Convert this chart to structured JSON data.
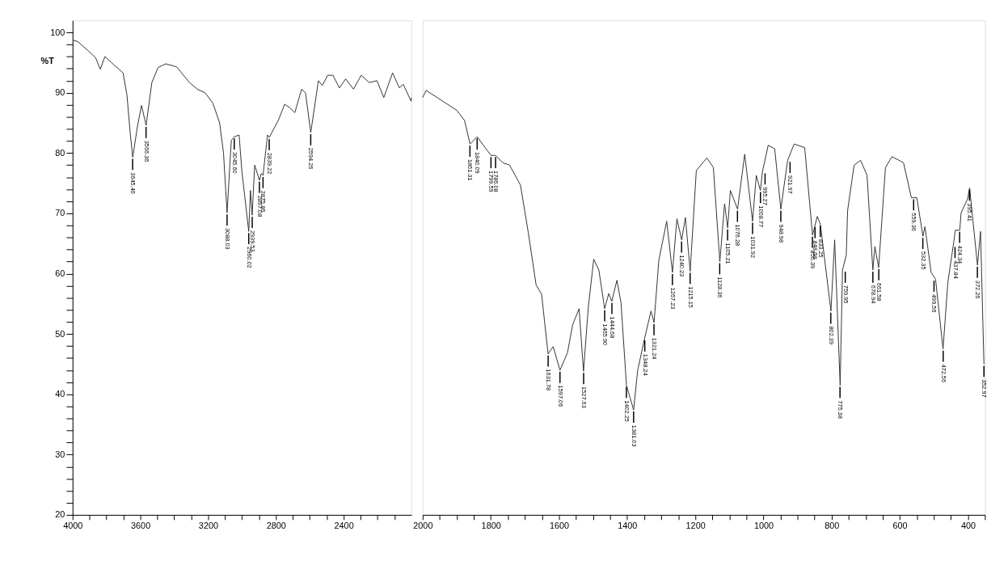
{
  "chart_data": [
    {
      "type": "line",
      "ylabel": "%T",
      "xlim": [
        4000,
        2000
      ],
      "ylim": [
        20,
        102
      ],
      "xticks": [
        4000,
        {
          "value": 3900,
          "label": null
        },
        {
          "value": 3800,
          "label": null
        },
        {
          "value": 3700,
          "label": null
        },
        3600,
        {
          "value": 3500,
          "label": null
        },
        {
          "value": 3400,
          "label": null
        },
        {
          "value": 3300,
          "label": null
        },
        3200,
        {
          "value": 3100,
          "label": null
        },
        {
          "value": 3000,
          "label": null
        },
        {
          "value": 2900,
          "label": null
        },
        2800,
        {
          "value": 2700,
          "label": null
        },
        {
          "value": 2600,
          "label": null
        },
        {
          "value": 2500,
          "label": null
        },
        2400,
        {
          "value": 2300,
          "label": null
        },
        {
          "value": 2200,
          "label": null
        },
        {
          "value": 2100,
          "label": null
        }
      ],
      "yticks": [
        20,
        {
          "value": 22,
          "label": null
        },
        {
          "value": 24,
          "label": null
        },
        {
          "value": 26,
          "label": null
        },
        {
          "value": 28,
          "label": null
        },
        30,
        {
          "value": 32,
          "label": null
        },
        {
          "value": 34,
          "label": null
        },
        {
          "value": 36,
          "label": null
        },
        {
          "value": 38,
          "label": null
        },
        40,
        {
          "value": 42,
          "label": null
        },
        {
          "value": 44,
          "label": null
        },
        {
          "value": 46,
          "label": null
        },
        {
          "value": 48,
          "label": null
        },
        50,
        {
          "value": 52,
          "label": null
        },
        {
          "value": 54,
          "label": null
        },
        {
          "value": 56,
          "label": null
        },
        {
          "value": 58,
          "label": null
        },
        60,
        {
          "value": 62,
          "label": null
        },
        {
          "value": 64,
          "label": null
        },
        {
          "value": 66,
          "label": null
        },
        {
          "value": 68,
          "label": null
        },
        70,
        {
          "value": 72,
          "label": null
        },
        {
          "value": 74,
          "label": null
        },
        {
          "value": 76,
          "label": null
        },
        {
          "value": 78,
          "label": null
        },
        80,
        {
          "value": 82,
          "label": null
        },
        {
          "value": 84,
          "label": null
        },
        {
          "value": 86,
          "label": null
        },
        {
          "value": 88,
          "label": null
        },
        90,
        {
          "value": 92,
          "label": null
        },
        {
          "value": 94,
          "label": null
        },
        {
          "value": 96,
          "label": null
        },
        {
          "value": 98,
          "label": null
        },
        100
      ],
      "x": [
        3998,
        3970,
        3909,
        3864,
        3836,
        3809,
        3755,
        3702,
        3679,
        3660,
        3645,
        3616,
        3593,
        3566,
        3532,
        3495,
        3449,
        3386,
        3310,
        3264,
        3218,
        3172,
        3132,
        3109,
        3088,
        3063,
        3045,
        3017,
        3001,
        2960,
        2950,
        2940,
        2925,
        2897,
        2886,
        2876,
        2849,
        2839,
        2786,
        2748,
        2717,
        2688,
        2648,
        2625,
        2594,
        2549,
        2526,
        2494,
        2463,
        2425,
        2388,
        2342,
        2296,
        2249,
        2203,
        2163,
        2111,
        2071,
        2048,
        2002,
        2000
      ],
      "series": [
        {
          "color": "#333333",
          "values": [
            98.7,
            98.5,
            97.0,
            95.8,
            93.9,
            96.0,
            94.6,
            93.3,
            89.6,
            83.4,
            79.3,
            84.6,
            87.9,
            84.6,
            91.7,
            94.2,
            94.8,
            94.3,
            91.7,
            90.6,
            90.0,
            88.3,
            85.0,
            80.0,
            70.1,
            82.1,
            82.7,
            83.0,
            77.1,
            67.0,
            73.8,
            69.7,
            78.0,
            75.5,
            76.6,
            76.3,
            83.0,
            82.6,
            85.4,
            88.1,
            87.5,
            86.7,
            90.6,
            90.0,
            83.4,
            92.0,
            91.2,
            92.9,
            92.9,
            90.8,
            92.3,
            90.6,
            92.9,
            91.7,
            92.0,
            89.2,
            93.3,
            90.8,
            91.4,
            88.6,
            89.2
          ]
        }
      ],
      "annotations": [
        {
          "text": "3645.46",
          "x": 3645.46,
          "y": 79.3
        },
        {
          "text": "3566.36",
          "x": 3566.36,
          "y": 84.6
        },
        {
          "text": "3088.03",
          "x": 3088.03,
          "y": 70.1
        },
        {
          "text": "3045.60",
          "x": 3045.6,
          "y": 82.7
        },
        {
          "text": "2960.02",
          "x": 2960.02,
          "y": 67.0
        },
        {
          "text": "2939.53",
          "x": 2939.53,
          "y": 69.7
        },
        {
          "text": "2897.08",
          "x": 2897.08,
          "y": 75.5
        },
        {
          "text": "2875.86",
          "x": 2875.86,
          "y": 76.3
        },
        {
          "text": "2839.22",
          "x": 2839.22,
          "y": 82.6
        },
        {
          "text": "2594.26",
          "x": 2594.26,
          "y": 83.4
        }
      ]
    },
    {
      "type": "line",
      "tick_labels": "x",
      "xlim": [
        2000,
        350
      ],
      "ylim": [
        20,
        102
      ],
      "xticks": [
        2000,
        {
          "value": 1950,
          "label": null
        },
        {
          "value": 1900,
          "label": null
        },
        {
          "value": 1850,
          "label": null
        },
        1800,
        {
          "value": 1750,
          "label": null
        },
        {
          "value": 1700,
          "label": null
        },
        {
          "value": 1650,
          "label": null
        },
        1600,
        {
          "value": 1550,
          "label": null
        },
        {
          "value": 1500,
          "label": null
        },
        {
          "value": 1450,
          "label": null
        },
        1400,
        {
          "value": 1350,
          "label": null
        },
        {
          "value": 1300,
          "label": null
        },
        {
          "value": 1250,
          "label": null
        },
        1200,
        {
          "value": 1150,
          "label": null
        },
        {
          "value": 1100,
          "label": null
        },
        {
          "value": 1050,
          "label": null
        },
        1000,
        {
          "value": 950,
          "label": null
        },
        {
          "value": 900,
          "label": null
        },
        {
          "value": 850,
          "label": null
        },
        800,
        {
          "value": 750,
          "label": null
        },
        {
          "value": 700,
          "label": null
        },
        {
          "value": 650,
          "label": null
        },
        600,
        {
          "value": 550,
          "label": null
        },
        {
          "value": 500,
          "label": null
        },
        {
          "value": 450,
          "label": null
        },
        400,
        {
          "value": 350,
          "label": null
        }
      ],
      "x": [
        2000,
        1990,
        1900,
        1877,
        1861,
        1840,
        1810,
        1799,
        1786,
        1765,
        1745,
        1713,
        1690,
        1667,
        1651,
        1632,
        1617,
        1597,
        1575,
        1560,
        1541,
        1528,
        1514,
        1498,
        1483,
        1466,
        1454,
        1445,
        1430,
        1418,
        1402,
        1381,
        1369,
        1349,
        1330,
        1321,
        1307,
        1284,
        1267,
        1254,
        1240,
        1229,
        1215,
        1197,
        1166,
        1147,
        1128,
        1114,
        1105,
        1097,
        1076,
        1055,
        1032,
        1021,
        1009,
        1003,
        986,
        967,
        949,
        929,
        910,
        879,
        856,
        842,
        833,
        802,
        791,
        775,
        768,
        757,
        753,
        734,
        715,
        696,
        679,
        673,
        662,
        642,
        623,
        589,
        566,
        559,
        550,
        532,
        526,
        508,
        495,
        473,
        459,
        443,
        437,
        424,
        420,
        401,
        395,
        372,
        363,
        353
      ],
      "series": [
        {
          "color": "#333333",
          "values": [
            89.2,
            90.4,
            87.1,
            85.4,
            81.5,
            82.7,
            80.4,
            79.6,
            79.6,
            78.4,
            78.0,
            74.7,
            66.8,
            58.1,
            56.6,
            46.7,
            47.9,
            44.0,
            46.9,
            51.5,
            54.2,
            43.8,
            54.4,
            62.4,
            60.6,
            54.2,
            56.7,
            55.4,
            58.9,
            55.2,
            41.5,
            37.4,
            44.0,
            49.2,
            53.8,
            51.9,
            62.2,
            68.7,
            60.2,
            69.1,
            65.6,
            69.3,
            60.4,
            77.1,
            79.2,
            77.6,
            62.0,
            71.6,
            67.6,
            73.8,
            70.7,
            79.8,
            68.7,
            76.3,
            73.8,
            76.9,
            81.3,
            80.7,
            70.7,
            78.8,
            81.5,
            80.9,
            66.4,
            69.5,
            68.2,
            53.8,
            65.6,
            41.5,
            60.6,
            63.1,
            70.5,
            78.0,
            78.8,
            76.3,
            60.6,
            64.5,
            61.0,
            77.6,
            79.4,
            78.4,
            72.6,
            72.6,
            72.6,
            66.2,
            67.8,
            60.2,
            59.1,
            47.5,
            58.5,
            64.7,
            67.2,
            67.2,
            70.1,
            72.4,
            74.2,
            61.4,
            67.0,
            45.0
          ]
        }
      ],
      "annotations": [
        {
          "text": "1861.31",
          "x": 1861.31,
          "y": 81.5
        },
        {
          "text": "1840.09",
          "x": 1840.09,
          "y": 82.7
        },
        {
          "text": "1799.59",
          "x": 1799.59,
          "y": 79.6
        },
        {
          "text": "1786.08",
          "x": 1786.08,
          "y": 79.6
        },
        {
          "text": "1631.78",
          "x": 1631.78,
          "y": 46.7
        },
        {
          "text": "1597.06",
          "x": 1597.06,
          "y": 44.0
        },
        {
          "text": "1527.63",
          "x": 1527.63,
          "y": 43.8
        },
        {
          "text": "1465.90",
          "x": 1465.9,
          "y": 54.2
        },
        {
          "text": "1444.68",
          "x": 1444.68,
          "y": 55.4
        },
        {
          "text": "1402.25",
          "x": 1402.25,
          "y": 41.5
        },
        {
          "text": "1381.03",
          "x": 1381.03,
          "y": 37.4
        },
        {
          "text": "1348.24",
          "x": 1348.24,
          "y": 49.2
        },
        {
          "text": "1321.24",
          "x": 1321.24,
          "y": 51.9
        },
        {
          "text": "1267.23",
          "x": 1267.23,
          "y": 60.2
        },
        {
          "text": "1240.23",
          "x": 1240.23,
          "y": 65.6
        },
        {
          "text": "1215.15",
          "x": 1215.15,
          "y": 60.4
        },
        {
          "text": "1128.36",
          "x": 1128.36,
          "y": 62.0
        },
        {
          "text": "1105.21",
          "x": 1105.21,
          "y": 67.6
        },
        {
          "text": "1076.28",
          "x": 1076.28,
          "y": 70.7
        },
        {
          "text": "1031.92",
          "x": 1031.92,
          "y": 68.7
        },
        {
          "text": "1008.77",
          "x": 1008.77,
          "y": 73.8
        },
        {
          "text": "995.27",
          "x": 995.27,
          "y": 76.9
        },
        {
          "text": "948.98",
          "x": 948.98,
          "y": 70.7
        },
        {
          "text": "921.97",
          "x": 921.97,
          "y": 78.8
        },
        {
          "text": "856.39",
          "x": 856.39,
          "y": 66.4
        },
        {
          "text": "848.68",
          "x": 848.68,
          "y": 68.0
        },
        {
          "text": "833.25",
          "x": 833.25,
          "y": 68.2
        },
        {
          "text": "802.39",
          "x": 802.39,
          "y": 53.8
        },
        {
          "text": "775.38",
          "x": 775.38,
          "y": 41.5
        },
        {
          "text": "759.95",
          "x": 759.95,
          "y": 60.6
        },
        {
          "text": "678.94",
          "x": 678.94,
          "y": 60.6
        },
        {
          "text": "661.58",
          "x": 661.58,
          "y": 61.0
        },
        {
          "text": "559.36",
          "x": 559.36,
          "y": 72.6
        },
        {
          "text": "532.35",
          "x": 532.35,
          "y": 66.2
        },
        {
          "text": "499.56",
          "x": 499.56,
          "y": 59.1
        },
        {
          "text": "472.56",
          "x": 472.56,
          "y": 47.5
        },
        {
          "text": "437.84",
          "x": 437.84,
          "y": 64.7
        },
        {
          "text": "424.34",
          "x": 424.34,
          "y": 67.2
        },
        {
          "text": "395.41",
          "x": 395.41,
          "y": 74.2
        },
        {
          "text": "372.26",
          "x": 372.26,
          "y": 61.4
        },
        {
          "text": "352.97",
          "x": 352.97,
          "y": 45.0
        }
      ]
    }
  ]
}
